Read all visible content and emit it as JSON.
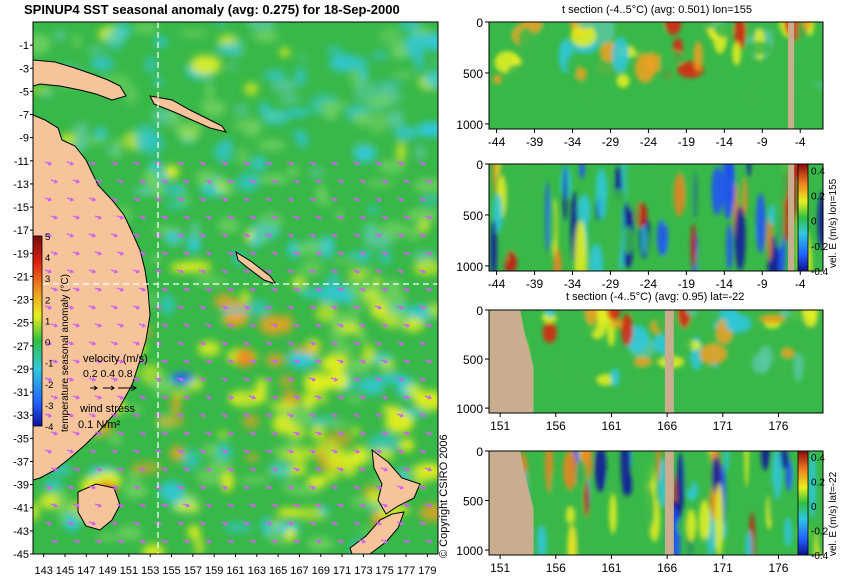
{
  "colors": {
    "land": "#f5c49a",
    "section_land": "#c8ae8f",
    "ocean_base": "#38b848",
    "wind_arrow": "#d060f0",
    "guide_line": "#ffffff"
  },
  "chart_data": [
    {
      "id": "map",
      "type": "heatmap",
      "title": "SPINUP4 SST seasonal anomaly (avg: 0.275) for 18-Sep-2000",
      "x_ticks": [
        143,
        145,
        147,
        149,
        151,
        153,
        155,
        157,
        159,
        161,
        163,
        165,
        167,
        169,
        171,
        173,
        175,
        177,
        179
      ],
      "x_tick_labels": [
        "143",
        "145",
        "147",
        "149",
        "151",
        "153",
        "155",
        "157",
        "159",
        "161",
        "163",
        "165",
        "167",
        "169",
        "171",
        "173",
        "175",
        "177",
        "179"
      ],
      "xlim": [
        142,
        180
      ],
      "y_ticks": [
        -1,
        -3,
        -5,
        -7,
        -9,
        -11,
        -13,
        -15,
        -17,
        -19,
        -21,
        -23,
        -25,
        -27,
        -29,
        -31,
        -33,
        -35,
        -37,
        -39,
        -41,
        -43,
        -45
      ],
      "y_tick_labels": [
        "-1",
        "-3",
        "-5",
        "-7",
        "-9",
        "-11",
        "-13",
        "-15",
        "-17",
        "-19",
        "-21",
        "-23",
        "-25",
        "-27",
        "-29",
        "-31",
        "-33",
        "-35",
        "-37",
        "-39",
        "-41",
        "-43",
        "-45"
      ],
      "ylim": [
        -45,
        1
      ],
      "guide_lon": 155,
      "guide_lat": -22,
      "colorbar": {
        "label": "temperature seasonal anomaly (°C)",
        "ticks": [
          5,
          4,
          3,
          2,
          1,
          0,
          -1,
          -2,
          -3,
          -4
        ],
        "tick_labels": [
          "5",
          "4",
          "3",
          "2",
          "1",
          "0",
          "-1",
          "-2",
          "-3",
          "-4"
        ],
        "range": [
          -4,
          5
        ]
      },
      "velocity_legend": {
        "label": "velocity (m/s)",
        "values": "0.2 0.4 0.8"
      },
      "wind_legend": {
        "label": "wind stress",
        "value": "0.1 N/m²"
      }
    },
    {
      "id": "section_t_lon",
      "type": "heatmap",
      "title": "t section (-4..5°C) (avg: 0.501) lon=155",
      "x_ticks": [
        -44,
        -39,
        -34,
        -29,
        -24,
        -19,
        -14,
        -9,
        -4
      ],
      "x_tick_labels": [
        "-44",
        "-39",
        "-34",
        "-29",
        "-24",
        "-19",
        "-14",
        "-9",
        "-4"
      ],
      "xlim": [
        -45,
        -1
      ],
      "y_ticks": [
        0,
        500,
        1000
      ],
      "y_tick_labels": [
        "0",
        "500",
        "1000"
      ],
      "ylim": [
        1050,
        0
      ],
      "land_x": [
        -5.6,
        -4.8
      ],
      "colorbar": null
    },
    {
      "id": "section_v_lon",
      "type": "heatmap",
      "title": "",
      "x_ticks": [
        -44,
        -39,
        -34,
        -29,
        -24,
        -19,
        -14,
        -9,
        -4
      ],
      "x_tick_labels": [
        "-44",
        "-39",
        "-34",
        "-29",
        "-24",
        "-19",
        "-14",
        "-9",
        "-4"
      ],
      "xlim": [
        -45,
        -1
      ],
      "y_ticks": [
        0,
        500,
        1000
      ],
      "y_tick_labels": [
        "0",
        "500",
        "1000"
      ],
      "ylim": [
        1050,
        0
      ],
      "land_x": [
        -5.6,
        -4.8
      ],
      "colorbar": {
        "label": "vel. E (m/s) lon=155",
        "ticks": [
          0.4,
          0.2,
          0,
          -0.2,
          -0.4
        ],
        "tick_labels": [
          "0.4",
          "0.2",
          "0",
          "-0.2",
          "-0.4"
        ],
        "range": [
          -0.4,
          0.45
        ]
      }
    },
    {
      "id": "section_t_lat",
      "type": "heatmap",
      "title": "t section (-4..5°C) (avg: 0.95) lat=-22",
      "x_ticks": [
        151,
        156,
        161,
        166,
        171,
        176
      ],
      "x_tick_labels": [
        "151",
        "156",
        "161",
        "166",
        "171",
        "176"
      ],
      "xlim": [
        150,
        180
      ],
      "y_ticks": [
        0,
        500,
        1000
      ],
      "y_tick_labels": [
        "0",
        "500",
        "1000"
      ],
      "ylim": [
        1050,
        0
      ],
      "land_x": [
        165.8,
        166.6
      ],
      "colorbar": null
    },
    {
      "id": "section_v_lat",
      "type": "heatmap",
      "title": "",
      "x_ticks": [
        151,
        156,
        161,
        166,
        171,
        176
      ],
      "x_tick_labels": [
        "151",
        "156",
        "161",
        "166",
        "171",
        "176"
      ],
      "xlim": [
        150,
        180
      ],
      "y_ticks": [
        0,
        500,
        1000
      ],
      "y_tick_labels": [
        "0",
        "500",
        "1000"
      ],
      "ylim": [
        1050,
        0
      ],
      "land_x": [
        165.8,
        166.6
      ],
      "colorbar": {
        "label": "vel. E (m/s) lat=-22",
        "ticks": [
          0.4,
          0.2,
          0,
          -0.2,
          -0.4
        ],
        "tick_labels": [
          "0.4",
          "0.2",
          "0",
          "-0.2",
          "-0.4"
        ],
        "range": [
          -0.4,
          0.45
        ]
      }
    }
  ],
  "copyright": "© Copyright CSIRO 2006"
}
